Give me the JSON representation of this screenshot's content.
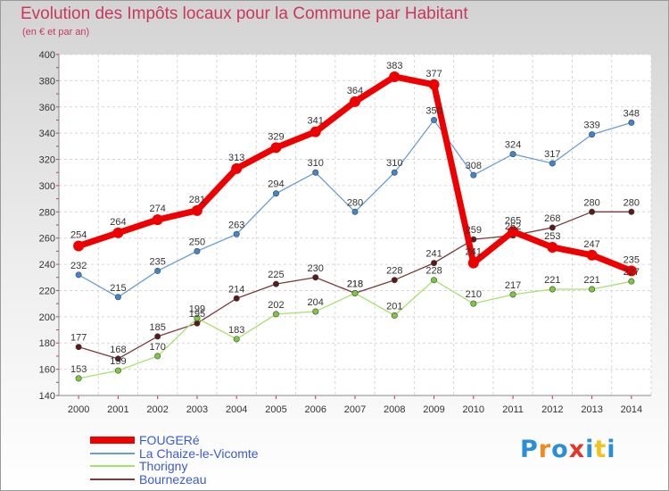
{
  "title": "Evolution des Impôts locaux pour la Commune par Habitant",
  "subtitle": "(en € et par an)",
  "brand": {
    "logo_letters": [
      "P",
      "r",
      "o",
      "x",
      "i",
      "t",
      "i"
    ],
    "logo_colors": [
      "#2a8fd6",
      "#f08a1c",
      "#2a8fd6",
      "#e2372b",
      "#2a8fd6",
      "#f3c21b",
      "#2a8fd6"
    ]
  },
  "chart_data": {
    "type": "line",
    "title": "Evolution des Impôts locaux pour la Commune par Habitant",
    "subtitle": "(en € et par an)",
    "x": [
      "2000",
      "2001",
      "2002",
      "2003",
      "2004",
      "2005",
      "2006",
      "2007",
      "2008",
      "2009",
      "2010",
      "2011",
      "2012",
      "2013",
      "2014"
    ],
    "ylim": [
      140,
      400
    ],
    "yticks": [
      140,
      160,
      180,
      200,
      220,
      240,
      260,
      280,
      300,
      320,
      340,
      360,
      380,
      400
    ],
    "grid": true,
    "legend_position": "bottom-left",
    "series": [
      {
        "name": "FOUGERé",
        "color": "#ee0000",
        "marker_color": "#ee0000",
        "values": [
          254,
          264,
          274,
          281,
          313,
          329,
          341,
          364,
          383,
          377,
          241,
          265,
          253,
          247,
          235
        ]
      },
      {
        "name": "La Chaize-le-Vicomte",
        "color": "#6a9ed2",
        "marker_color": "#3f86cc",
        "values": [
          232,
          215,
          235,
          250,
          263,
          294,
          310,
          280,
          310,
          350,
          308,
          324,
          317,
          339,
          348
        ]
      },
      {
        "name": "Thorigny",
        "color": "#a8e070",
        "marker_color": "#7cc83e",
        "values": [
          153,
          159,
          170,
          199,
          183,
          202,
          204,
          218,
          201,
          228,
          210,
          217,
          221,
          221,
          227
        ]
      },
      {
        "name": "Bournezeau",
        "color": "#7a3a3a",
        "marker_color": "#5a1a1a",
        "values": [
          177,
          168,
          185,
          195,
          214,
          225,
          230,
          218,
          228,
          241,
          259,
          262,
          268,
          280,
          280
        ]
      }
    ]
  }
}
